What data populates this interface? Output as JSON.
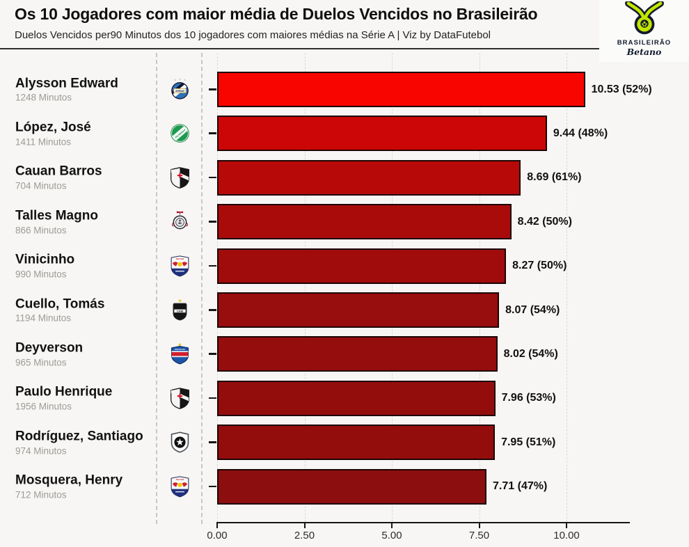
{
  "header": {
    "title": "Os 10 Jogadores com maior média de Duelos Vencidos no Brasileirão",
    "subtitle": "Duelos Vencidos per90 Minutos dos 10 jogadores com maiores médias na Série A | Viz by DataFutebol"
  },
  "logo": {
    "icon": "brasileirao-betano-crest-icon",
    "line1": "BRASILEIRÃO",
    "line2": "Betano",
    "lime_color": "#c3e600",
    "navy_color": "#141b2e"
  },
  "chart_data": {
    "type": "bar",
    "orientation": "horizontal",
    "title": "Os 10 Jogadores com maior média de Duelos Vencidos no Brasileirão",
    "subtitle": "Duelos Vencidos per90 Minutos dos 10 jogadores com maiores médias na Série A | Viz by DataFutebol",
    "xlabel": "",
    "ylabel": "",
    "xlim": [
      0,
      11.8
    ],
    "grid": "vertical-dashed",
    "legend": "none",
    "bar_border_color": "#1d0405",
    "x_axis": {
      "ticks": [
        "0.00",
        "2.50",
        "5.00",
        "7.50",
        "10.00"
      ],
      "values": [
        0,
        2.5,
        5,
        7.5,
        10
      ]
    },
    "players": [
      {
        "name": "Alysson Edward",
        "minutes": "1248 Minutos",
        "team": "gremio",
        "team_icon": "gremio-badge-icon",
        "value": 10.53,
        "pct": "52%",
        "label": "10.53 (52%)",
        "color": "#f90500"
      },
      {
        "name": "López, José",
        "minutes": "1411 Minutos",
        "team": "palmeiras",
        "team_icon": "palmeiras-badge-icon",
        "value": 9.44,
        "pct": "48%",
        "label": "9.44 (48%)",
        "color": "#cc0606"
      },
      {
        "name": "Cauan Barros",
        "minutes": "704 Minutos",
        "team": "vasco",
        "team_icon": "vasco-badge-icon",
        "value": 8.69,
        "pct": "61%",
        "label": "8.69 (61%)",
        "color": "#b80909"
      },
      {
        "name": "Talles Magno",
        "minutes": "866 Minutos",
        "team": "corinthians",
        "team_icon": "corinthians-badge-icon",
        "value": 8.42,
        "pct": "50%",
        "label": "8.42 (50%)",
        "color": "#a90b0b"
      },
      {
        "name": "Vinicinho",
        "minutes": "990 Minutos",
        "team": "bragantino",
        "team_icon": "bragantino-badge-icon",
        "value": 8.27,
        "pct": "50%",
        "label": "8.27 (50%)",
        "color": "#a00c0c"
      },
      {
        "name": "Cuello, Tomás",
        "minutes": "1194 Minutos",
        "team": "atletico-mg",
        "team_icon": "atletico-mg-badge-icon",
        "value": 8.07,
        "pct": "54%",
        "label": "8.07 (54%)",
        "color": "#980d0d"
      },
      {
        "name": "Deyverson",
        "minutes": "965 Minutos",
        "team": "fortaleza",
        "team_icon": "fortaleza-badge-icon",
        "value": 8.02,
        "pct": "54%",
        "label": "8.02 (54%)",
        "color": "#960d0d"
      },
      {
        "name": "Paulo Henrique",
        "minutes": "1956 Minutos",
        "team": "vasco",
        "team_icon": "vasco-badge-icon",
        "value": 7.96,
        "pct": "53%",
        "label": "7.96 (53%)",
        "color": "#940d0d"
      },
      {
        "name": "Rodríguez, Santiago",
        "minutes": "974 Minutos",
        "team": "botafogo",
        "team_icon": "botafogo-badge-icon",
        "value": 7.95,
        "pct": "51%",
        "label": "7.95 (51%)",
        "color": "#930d0d"
      },
      {
        "name": "Mosquera, Henry",
        "minutes": "712 Minutos",
        "team": "bragantino",
        "team_icon": "bragantino-badge-icon",
        "value": 7.71,
        "pct": "47%",
        "label": "7.71 (47%)",
        "color": "#8d0e0e"
      }
    ]
  }
}
